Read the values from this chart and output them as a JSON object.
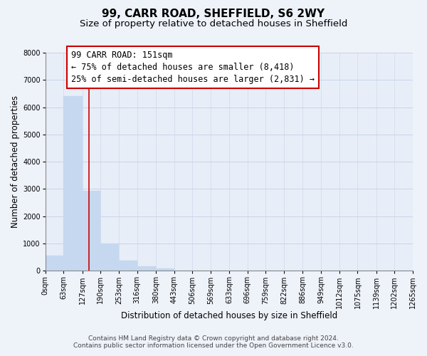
{
  "title": "99, CARR ROAD, SHEFFIELD, S6 2WY",
  "subtitle": "Size of property relative to detached houses in Sheffield",
  "bar_edges": [
    0,
    63,
    127,
    190,
    253,
    316,
    380,
    443,
    506,
    569,
    633,
    696,
    759,
    822,
    886,
    949,
    1012,
    1075,
    1139,
    1202,
    1265
  ],
  "bar_heights": [
    560,
    6420,
    2930,
    990,
    380,
    170,
    100,
    0,
    0,
    0,
    0,
    0,
    0,
    0,
    0,
    0,
    0,
    0,
    0,
    0
  ],
  "bar_color": "#c5d8f0",
  "bar_edgecolor": "#c5d8f0",
  "property_line_x": 151,
  "property_line_color": "#cc0000",
  "ylim": [
    0,
    8000
  ],
  "yticks": [
    0,
    1000,
    2000,
    3000,
    4000,
    5000,
    6000,
    7000,
    8000
  ],
  "xlabel": "Distribution of detached houses by size in Sheffield",
  "ylabel": "Number of detached properties",
  "xtick_labels": [
    "0sqm",
    "63sqm",
    "127sqm",
    "190sqm",
    "253sqm",
    "316sqm",
    "380sqm",
    "443sqm",
    "506sqm",
    "569sqm",
    "633sqm",
    "696sqm",
    "759sqm",
    "822sqm",
    "886sqm",
    "949sqm",
    "1012sqm",
    "1075sqm",
    "1139sqm",
    "1202sqm",
    "1265sqm"
  ],
  "annotation_line1": "99 CARR ROAD: 151sqm",
  "annotation_line2": "← 75% of detached houses are smaller (8,418)",
  "annotation_line3": "25% of semi-detached houses are larger (2,831) →",
  "footer_text": "Contains HM Land Registry data © Crown copyright and database right 2024.\nContains public sector information licensed under the Open Government Licence v3.0.",
  "bg_color": "#eef2f9",
  "plot_bg_color": "#e8eef8",
  "grid_color": "#c8d4e8",
  "title_fontsize": 11,
  "subtitle_fontsize": 9.5,
  "axis_label_fontsize": 8.5,
  "tick_fontsize": 7,
  "annotation_fontsize": 8.5,
  "footer_fontsize": 6.5
}
